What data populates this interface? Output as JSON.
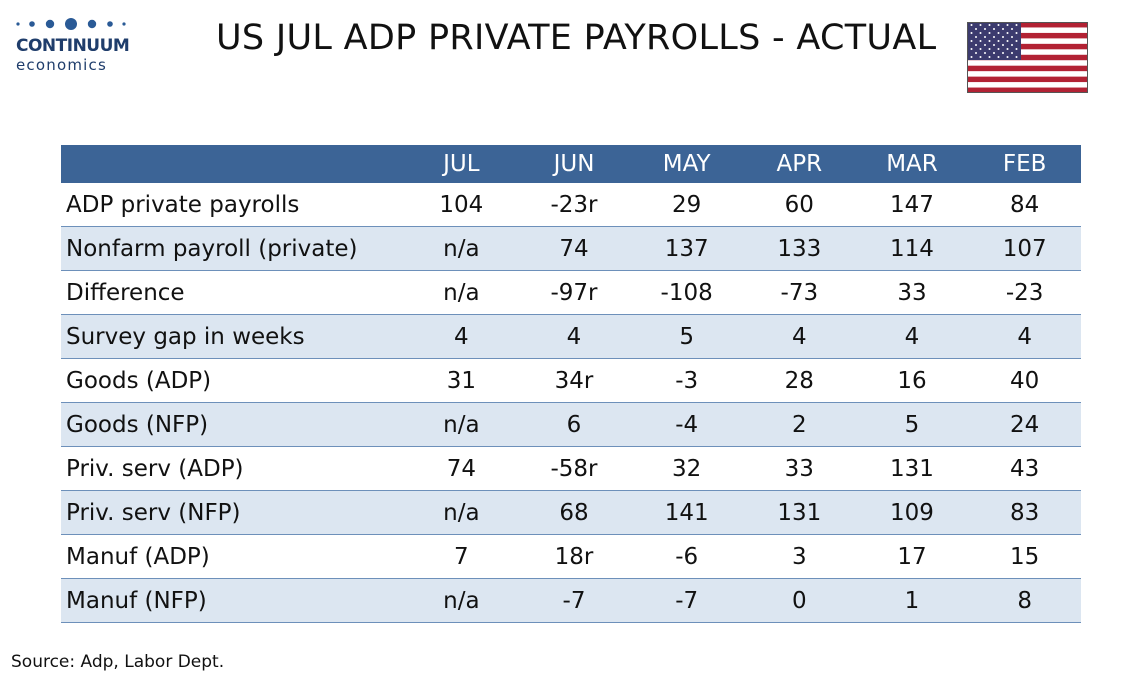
{
  "logo": {
    "name": "CONTINUUM",
    "sub": "economics",
    "dot_color": "#2a5a96"
  },
  "title": "US JUL ADP PRIVATE PAYROLLS - ACTUAL",
  "flag": {
    "icon": "us-flag-icon",
    "stripe_red": "#b22234",
    "canton_blue": "#3c3b6e"
  },
  "table": {
    "header_color": "#3c6496",
    "band_color": "#dce6f1",
    "columns": [
      "",
      "JUL",
      "JUN",
      "MAY",
      "APR",
      "MAR",
      "FEB"
    ],
    "rows": [
      {
        "label": "ADP private payrolls",
        "values": [
          "104",
          "-23r",
          "29",
          "60",
          "147",
          "84"
        ]
      },
      {
        "label": "Nonfarm payroll (private)",
        "values": [
          "n/a",
          "74",
          "137",
          "133",
          "114",
          "107"
        ]
      },
      {
        "label": "Difference",
        "values": [
          "n/a",
          "-97r",
          "-108",
          "-73",
          "33",
          "-23"
        ]
      },
      {
        "label": "Survey gap in weeks",
        "values": [
          "4",
          "4",
          "5",
          "4",
          "4",
          "4"
        ]
      },
      {
        "label": "Goods (ADP)",
        "values": [
          "31",
          "34r",
          "-3",
          "28",
          "16",
          "40"
        ]
      },
      {
        "label": "Goods (NFP)",
        "values": [
          "n/a",
          "6",
          "-4",
          "2",
          "5",
          "24"
        ]
      },
      {
        "label": "Priv. serv (ADP)",
        "values": [
          "74",
          "-58r",
          "32",
          "33",
          "131",
          "43"
        ]
      },
      {
        "label": "Priv. serv (NFP)",
        "values": [
          "n/a",
          "68",
          "141",
          "131",
          "109",
          "83"
        ]
      },
      {
        "label": "Manuf (ADP)",
        "values": [
          "7",
          "18r",
          "-6",
          "3",
          "17",
          "15"
        ]
      },
      {
        "label": "Manuf (NFP)",
        "values": [
          "n/a",
          "-7",
          "-7",
          "0",
          "1",
          "8"
        ]
      }
    ]
  },
  "source": "Source: Adp, Labor Dept."
}
